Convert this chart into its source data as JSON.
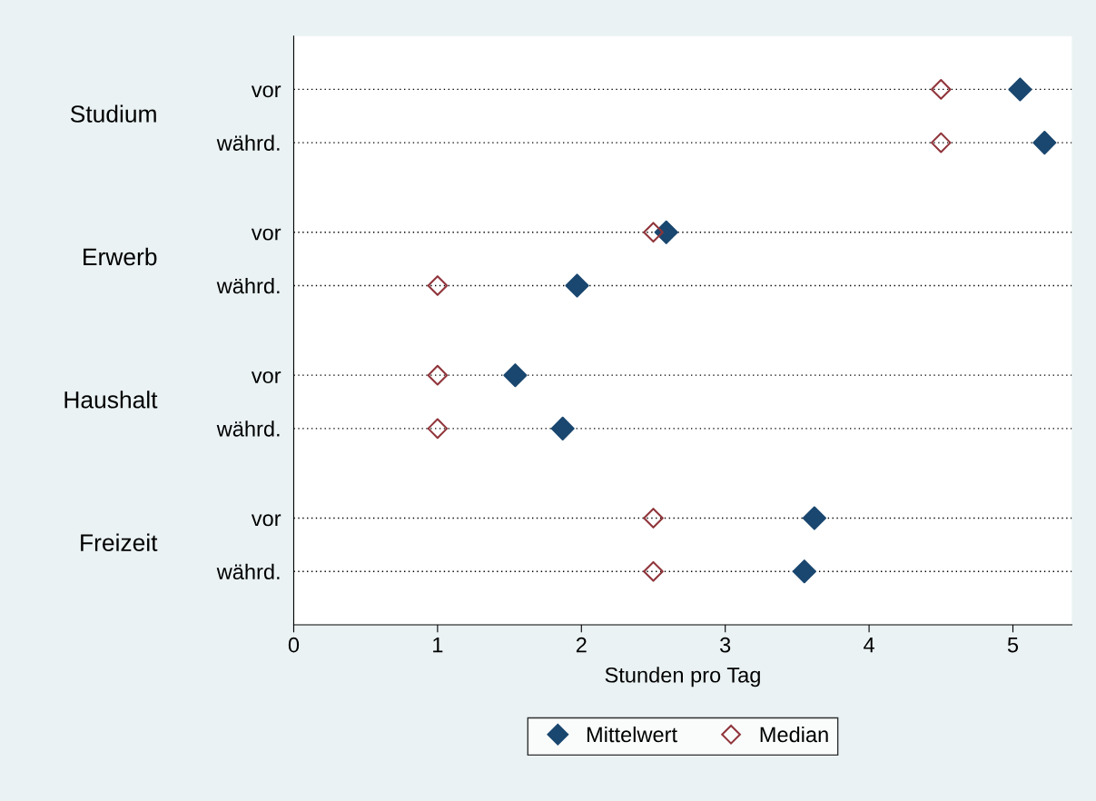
{
  "chart_data": {
    "type": "scatter",
    "orientation": "horizontal",
    "xlabel": "Stunden pro Tag",
    "categories": [
      "vor",
      "währd.",
      "vor",
      "währd.",
      "vor",
      "währd.",
      "vor",
      "währd."
    ],
    "annotations": [
      "Studium",
      "Erwerb",
      "Haushalt",
      "Freizeit"
    ],
    "series": [
      {
        "name": "Mittelwert",
        "color": "#1a476f",
        "marker": "diamond",
        "values": [
          5.05,
          5.22,
          2.59,
          1.97,
          1.54,
          1.87,
          3.62,
          3.55
        ]
      },
      {
        "name": "Median",
        "color": "#90353b",
        "marker": "diamond_open",
        "values": [
          4.5,
          4.5,
          2.5,
          1.0,
          1.0,
          1.0,
          2.5,
          2.5
        ]
      }
    ],
    "xlim": [
      0,
      5.41
    ],
    "xticks": [
      0,
      1,
      2,
      3,
      4,
      5
    ],
    "grid": "y",
    "legend": "bottom"
  }
}
